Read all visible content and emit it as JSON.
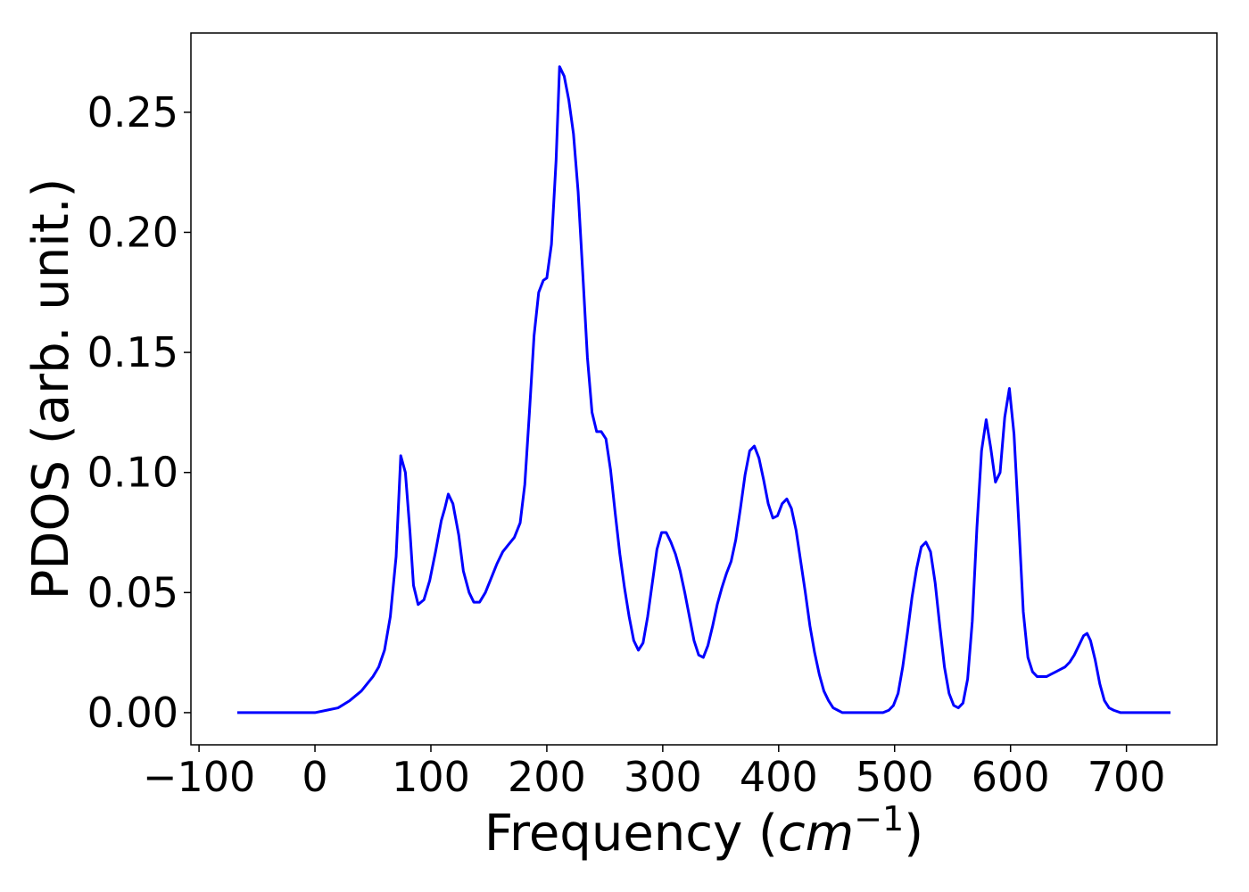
{
  "chart_data": {
    "type": "line",
    "xlabel": [
      "Frequency (",
      "cm",
      "−1",
      ")"
    ],
    "ylabel": "PDOS (arb. unit.)",
    "xlim": [
      -107,
      778
    ],
    "ylim": [
      -0.0134,
      0.283
    ],
    "xticks": [
      {
        "value": -100,
        "label": "−100"
      },
      0,
      100,
      200,
      300,
      400,
      500,
      600,
      700
    ],
    "yticks": [
      {
        "value": 0,
        "label": "0.00"
      },
      {
        "value": 0.05,
        "label": "0.05"
      },
      {
        "value": 0.1,
        "label": "0.10"
      },
      {
        "value": 0.15,
        "label": "0.15"
      },
      {
        "value": 0.2,
        "label": "0.20"
      },
      {
        "value": 0.25,
        "label": "0.25"
      }
    ],
    "grid": false,
    "series": [
      {
        "color": "#0000ff",
        "x": [
          -67,
          -40,
          -10,
          0,
          10,
          20,
          30,
          40,
          50,
          55,
          60,
          65,
          70,
          74,
          78,
          82,
          85,
          89,
          94,
          99,
          104,
          109,
          112,
          115,
          119,
          124,
          128,
          133,
          137,
          142,
          147,
          152,
          157,
          162,
          167,
          172,
          177,
          181,
          185,
          189,
          193,
          197,
          200,
          204,
          208,
          211,
          215,
          219,
          223,
          227,
          231,
          235,
          239,
          243,
          247,
          251,
          255,
          259,
          263,
          267,
          271,
          275,
          279,
          283,
          287,
          291,
          295,
          299,
          303,
          307,
          311,
          315,
          319,
          323,
          327,
          331,
          335,
          339,
          343,
          347,
          351,
          355,
          359,
          363,
          367,
          371,
          375,
          379,
          383,
          387,
          391,
          395,
          399,
          403,
          407,
          411,
          415,
          419,
          423,
          427,
          431,
          435,
          439,
          443,
          447,
          451,
          455,
          490,
          495,
          499,
          503,
          507,
          511,
          515,
          519,
          523,
          527,
          531,
          535,
          539,
          543,
          547,
          551,
          555,
          559,
          563,
          567,
          571,
          575,
          579,
          583,
          587,
          591,
          595,
          599,
          603,
          607,
          611,
          615,
          619,
          623,
          627,
          631,
          635,
          639,
          643,
          647,
          651,
          655,
          659,
          663,
          666,
          669,
          673,
          677,
          681,
          685,
          689,
          695,
          738
        ],
        "values": [
          0,
          0,
          0,
          0,
          0.001,
          0.002,
          0.005,
          0.009,
          0.015,
          0.019,
          0.026,
          0.04,
          0.065,
          0.107,
          0.1,
          0.075,
          0.053,
          0.045,
          0.047,
          0.055,
          0.067,
          0.08,
          0.085,
          0.091,
          0.087,
          0.074,
          0.059,
          0.05,
          0.046,
          0.046,
          0.05,
          0.056,
          0.062,
          0.067,
          0.07,
          0.073,
          0.079,
          0.095,
          0.125,
          0.157,
          0.175,
          0.18,
          0.181,
          0.195,
          0.23,
          0.269,
          0.265,
          0.255,
          0.241,
          0.217,
          0.183,
          0.148,
          0.125,
          0.117,
          0.117,
          0.114,
          0.101,
          0.083,
          0.066,
          0.052,
          0.04,
          0.03,
          0.026,
          0.029,
          0.04,
          0.054,
          0.068,
          0.075,
          0.075,
          0.071,
          0.066,
          0.059,
          0.05,
          0.04,
          0.03,
          0.024,
          0.023,
          0.028,
          0.036,
          0.045,
          0.052,
          0.058,
          0.063,
          0.072,
          0.085,
          0.099,
          0.109,
          0.111,
          0.106,
          0.097,
          0.087,
          0.081,
          0.082,
          0.087,
          0.089,
          0.085,
          0.076,
          0.063,
          0.05,
          0.036,
          0.025,
          0.016,
          0.009,
          0.005,
          0.002,
          0.001,
          0,
          0,
          0.001,
          0.003,
          0.008,
          0.019,
          0.033,
          0.048,
          0.06,
          0.069,
          0.071,
          0.067,
          0.054,
          0.036,
          0.019,
          0.008,
          0.003,
          0.002,
          0.004,
          0.014,
          0.038,
          0.077,
          0.109,
          0.122,
          0.11,
          0.096,
          0.1,
          0.123,
          0.135,
          0.116,
          0.08,
          0.042,
          0.023,
          0.017,
          0.015,
          0.015,
          0.015,
          0.016,
          0.017,
          0.018,
          0.019,
          0.021,
          0.024,
          0.028,
          0.032,
          0.033,
          0.03,
          0.022,
          0.012,
          0.005,
          0.002,
          0.001,
          0,
          0
        ]
      }
    ]
  }
}
